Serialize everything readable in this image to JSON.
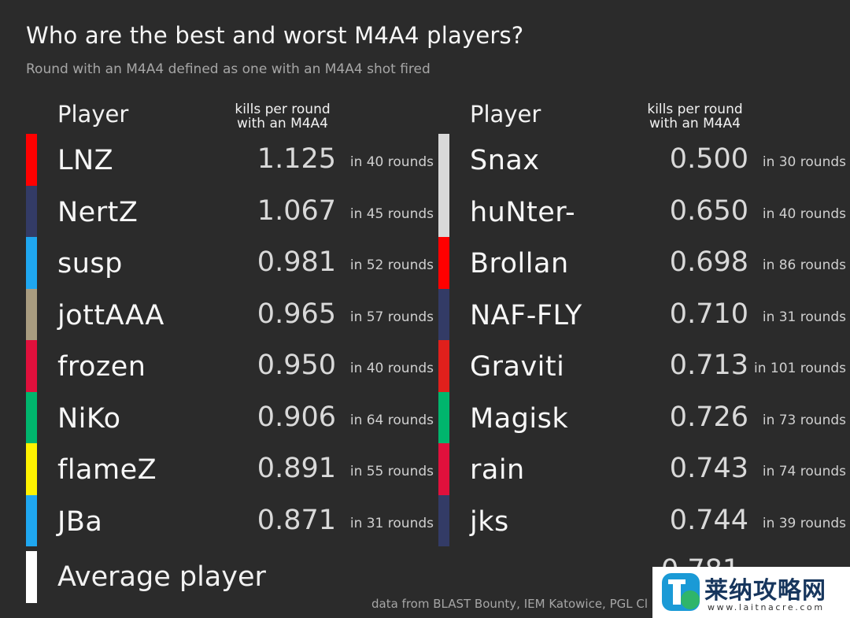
{
  "title": "Who are the best and worst M4A4 players?",
  "subtitle": "Round with an M4A4 defined as one with an M4A4 shot fired",
  "source": "data from BLAST Bounty, IEM Katowice, PGL Cl",
  "watermark": {
    "text": "莱纳攻略网",
    "url": "www.laitnacre.com"
  },
  "chart_data": {
    "type": "table",
    "columns": {
      "player": "Player",
      "kpr": "kills per round with an M4A4"
    },
    "best": [
      {
        "player": "LNZ",
        "kpr": "1.125",
        "rounds": "in 40 rounds",
        "color": "#ff0000"
      },
      {
        "player": "NertZ",
        "kpr": "1.067",
        "rounds": "in 45 rounds",
        "color": "#333b66"
      },
      {
        "player": "susp",
        "kpr": "0.981",
        "rounds": "in 52 rounds",
        "color": "#1fa7f0"
      },
      {
        "player": "jottAAA",
        "kpr": "0.965",
        "rounds": "in 57 rounds",
        "color": "#a99c80"
      },
      {
        "player": "frozen",
        "kpr": "0.950",
        "rounds": "in 40 rounds",
        "color": "#e0103c"
      },
      {
        "player": "NiKo",
        "kpr": "0.906",
        "rounds": "in 64 rounds",
        "color": "#00b56d"
      },
      {
        "player": "flameZ",
        "kpr": "0.891",
        "rounds": "in 55 rounds",
        "color": "#fff200"
      },
      {
        "player": "JBa",
        "kpr": "0.871",
        "rounds": "in 31 rounds",
        "color": "#1fa7f0"
      }
    ],
    "worst": [
      {
        "player": "Snax",
        "kpr": "0.500",
        "rounds": "in 30 rounds",
        "color": "#d9d9d9"
      },
      {
        "player": "huNter-",
        "kpr": "0.650",
        "rounds": "in 40 rounds",
        "color": "#d9d9d9"
      },
      {
        "player": "Brollan",
        "kpr": "0.698",
        "rounds": "in 86 rounds",
        "color": "#ff0000"
      },
      {
        "player": "NAF-FLY",
        "kpr": "0.710",
        "rounds": "in 31 rounds",
        "color": "#333b66"
      },
      {
        "player": "Graviti",
        "kpr": "0.713",
        "rounds": "in 101 rounds",
        "color": "#e0201c"
      },
      {
        "player": "Magisk",
        "kpr": "0.726",
        "rounds": "in 73 rounds",
        "color": "#00b56d"
      },
      {
        "player": "rain",
        "kpr": "0.743",
        "rounds": "in 74 rounds",
        "color": "#e0103c"
      },
      {
        "player": "jks",
        "kpr": "0.744",
        "rounds": "in 39 rounds",
        "color": "#333b66"
      }
    ],
    "average": {
      "player": "Average player",
      "kpr": "0.781",
      "color": "#ffffff"
    }
  }
}
